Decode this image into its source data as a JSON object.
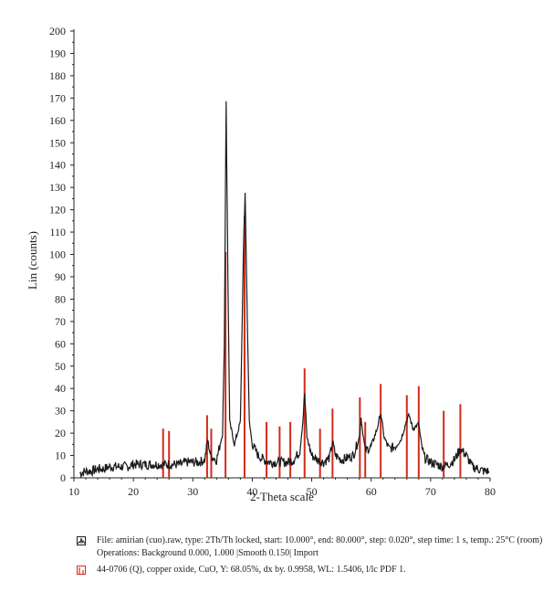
{
  "chart_data": {
    "type": "line",
    "xlabel": "2-Theta scale",
    "ylabel": "Lin (counts)",
    "xlim": [
      10,
      80
    ],
    "ylim": [
      0,
      200
    ],
    "x_ticks": [
      "10",
      "20",
      "30",
      "40",
      "50",
      "60",
      "70",
      "80"
    ],
    "y_ticks": [
      "0",
      "10",
      "20",
      "30",
      "40",
      "50",
      "60",
      "70",
      "80",
      "90",
      "100",
      "110",
      "120",
      "130",
      "140",
      "150",
      "160",
      "170",
      "180",
      "190",
      "200"
    ],
    "series": [
      {
        "name": "File: amirian (cuo).raw",
        "color": "#1a1a1a",
        "points": [
          [
            11,
            2
          ],
          [
            12,
            3
          ],
          [
            13,
            3
          ],
          [
            14,
            4
          ],
          [
            15,
            4
          ],
          [
            16,
            5
          ],
          [
            17,
            5
          ],
          [
            18,
            5
          ],
          [
            19,
            5
          ],
          [
            20,
            6
          ],
          [
            21,
            6
          ],
          [
            22,
            6
          ],
          [
            23,
            6
          ],
          [
            24,
            6
          ],
          [
            25,
            6
          ],
          [
            26,
            6
          ],
          [
            27,
            6
          ],
          [
            28,
            6
          ],
          [
            29,
            7
          ],
          [
            30,
            7
          ],
          [
            31,
            7
          ],
          [
            32,
            8
          ],
          [
            32.5,
            17
          ],
          [
            33,
            10
          ],
          [
            34,
            8
          ],
          [
            35,
            20
          ],
          [
            35.3,
            60
          ],
          [
            35.6,
            169
          ],
          [
            35.9,
            90
          ],
          [
            36.2,
            25
          ],
          [
            37,
            15
          ],
          [
            38,
            25
          ],
          [
            38.5,
            100
          ],
          [
            38.8,
            128
          ],
          [
            39.1,
            80
          ],
          [
            39.5,
            25
          ],
          [
            40,
            15
          ],
          [
            41,
            10
          ],
          [
            42,
            8
          ],
          [
            43,
            7
          ],
          [
            44,
            7
          ],
          [
            45,
            7
          ],
          [
            46,
            7
          ],
          [
            47,
            8
          ],
          [
            48,
            12
          ],
          [
            48.5,
            25
          ],
          [
            48.8,
            38
          ],
          [
            49.2,
            18
          ],
          [
            50,
            10
          ],
          [
            51,
            8
          ],
          [
            52,
            7
          ],
          [
            53,
            9
          ],
          [
            53.5,
            16
          ],
          [
            54,
            10
          ],
          [
            55,
            8
          ],
          [
            56,
            9
          ],
          [
            57,
            10
          ],
          [
            58,
            18
          ],
          [
            58.3,
            27
          ],
          [
            58.8,
            16
          ],
          [
            59,
            12
          ],
          [
            60,
            14
          ],
          [
            61,
            22
          ],
          [
            61.6,
            29
          ],
          [
            62.2,
            18
          ],
          [
            63,
            13
          ],
          [
            64,
            14
          ],
          [
            65,
            17
          ],
          [
            66,
            26
          ],
          [
            66.4,
            28
          ],
          [
            67,
            22
          ],
          [
            68,
            24
          ],
          [
            68.5,
            14
          ],
          [
            69,
            9
          ],
          [
            70,
            7
          ],
          [
            71,
            6
          ],
          [
            72,
            5
          ],
          [
            73,
            6
          ],
          [
            74,
            8
          ],
          [
            75,
            13
          ],
          [
            76,
            10
          ],
          [
            77,
            5
          ],
          [
            78,
            4
          ],
          [
            79,
            3
          ],
          [
            79.8,
            3
          ]
        ]
      }
    ],
    "reference_peaks": {
      "name": "44-0706 (Q), copper oxide, CuO",
      "color": "#d22b1a",
      "positions": [
        [
          25.0,
          22
        ],
        [
          26.0,
          21
        ],
        [
          32.4,
          28
        ],
        [
          33.1,
          22
        ],
        [
          35.5,
          101
        ],
        [
          38.7,
          117
        ],
        [
          42.4,
          25
        ],
        [
          44.6,
          23
        ],
        [
          46.4,
          25
        ],
        [
          48.8,
          49
        ],
        [
          51.4,
          22
        ],
        [
          53.5,
          31
        ],
        [
          58.1,
          36
        ],
        [
          59.0,
          25
        ],
        [
          61.6,
          42
        ],
        [
          66.0,
          37
        ],
        [
          68.0,
          41
        ],
        [
          72.2,
          30
        ],
        [
          75.0,
          33
        ]
      ]
    }
  },
  "legend": {
    "row1_line1": "File: amirian (cuo).raw, type: 2Th/Th locked, start: 10.000°, end: 80.000°, step: 0.020°, step time: 1 s, temp.: 25°C (room)",
    "row1_line2": "Operations: Background 0.000, 1.000 |Smooth 0.150| Import",
    "row2": "44-0706 (Q), copper oxide, CuO, Y: 68.05%, dx by. 0.9958, WL: 1.5406, l/lc PDF 1."
  }
}
